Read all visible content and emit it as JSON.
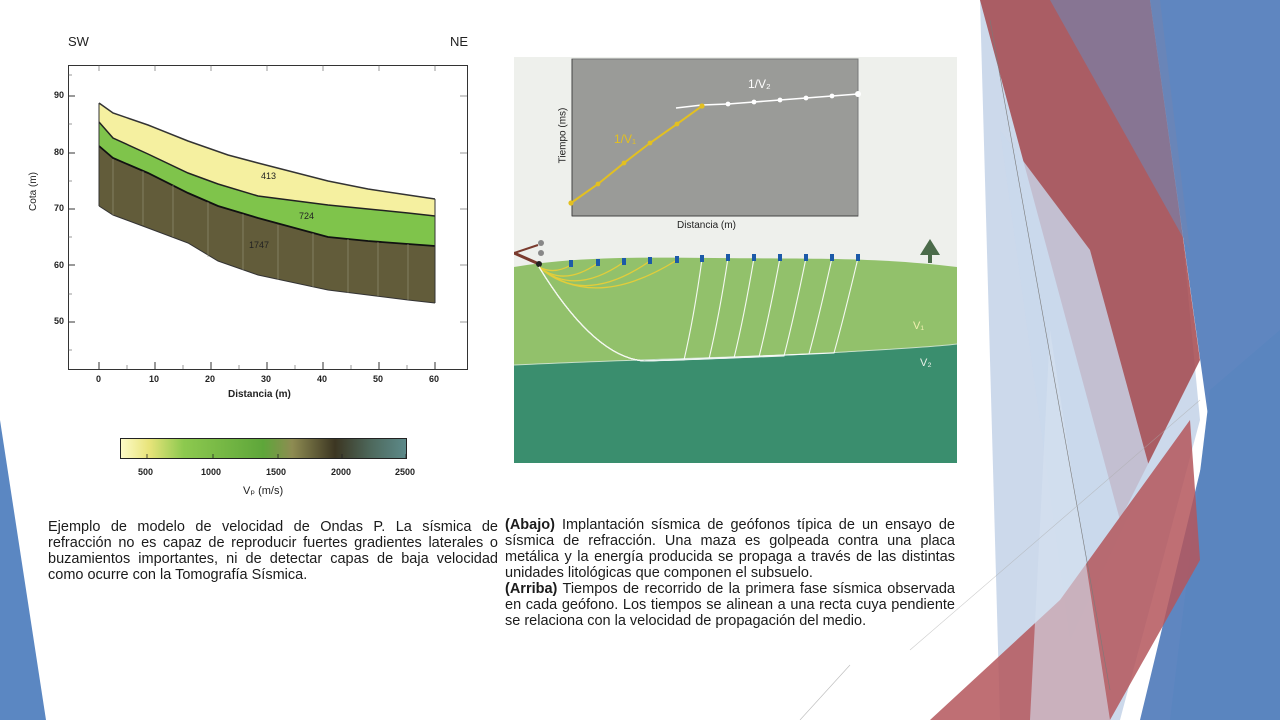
{
  "left_figure": {
    "dir_left": "SW",
    "dir_right": "NE",
    "ylabel": "Cota (m)",
    "xlabel": "Distancia (m)",
    "y_ticks": [
      "90",
      "80",
      "70",
      "60",
      "50"
    ],
    "x_ticks": [
      "0",
      "10",
      "20",
      "30",
      "40",
      "50",
      "60"
    ],
    "layer_labels": [
      "413",
      "724",
      "1747"
    ]
  },
  "colorbar": {
    "ticks": [
      "500",
      "1000",
      "1500",
      "2000",
      "2500"
    ],
    "label": "Vₚ (m/s)"
  },
  "right_figure": {
    "ylabel": "Tiempo (ms)",
    "xlabel": "Distancia (m)",
    "slope_label_1": "1/V₁",
    "slope_label_2": "1/V₂",
    "layer_v1": "V₁",
    "layer_v2": "V₂"
  },
  "caption_left": "Ejemplo de modelo de velocidad de Ondas P. La sísmica de refracción no es capaz de reproducir fuertes gradientes laterales o buzamientos importantes, ni de detectar capas de baja velocidad como ocurre con la Tomografía Sísmica.",
  "caption_right": {
    "abajo_tag": "(Abajo)",
    "abajo_text": " Implantación sísmica de geófonos típica de un ensayo de sísmica de refracción. Una maza es golpeada contra una placa metálica y la energía producida se propaga a través de las distintas unidades litológicas que componen el subsuelo.",
    "arriba_tag": "(Arriba)",
    "arriba_text": " Tiempos de recorrido de la primera fase sísmica observada en cada geófono. Los tiempos se alinean a una recta cuya pendiente se relaciona con la velocidad de propagación del medio."
  }
}
